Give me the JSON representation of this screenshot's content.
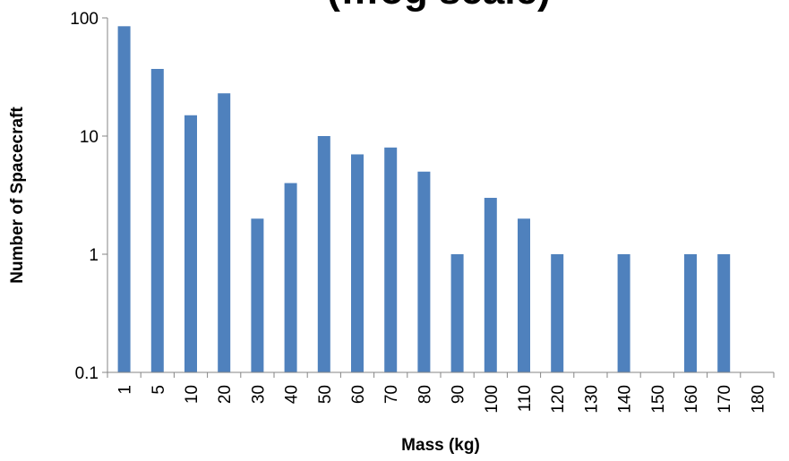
{
  "chart_data": {
    "type": "bar",
    "title": "(…og scale)",
    "xlabel": "Mass (kg)",
    "ylabel": "Number of Spacecraft",
    "yscale": "log",
    "ylim": [
      0.1,
      100
    ],
    "yticks": [
      "0.1",
      "1",
      "10",
      "100"
    ],
    "grid": false,
    "legend": "none",
    "bar_color": "#4f81bd",
    "categories": [
      "1",
      "5",
      "10",
      "20",
      "30",
      "40",
      "50",
      "60",
      "70",
      "80",
      "90",
      "100",
      "110",
      "120",
      "130",
      "140",
      "150",
      "160",
      "170",
      "180"
    ],
    "values": [
      85,
      37,
      15,
      23,
      2,
      4,
      10,
      7,
      8,
      5,
      1,
      3,
      2,
      1,
      null,
      1,
      null,
      1,
      1,
      null
    ]
  }
}
